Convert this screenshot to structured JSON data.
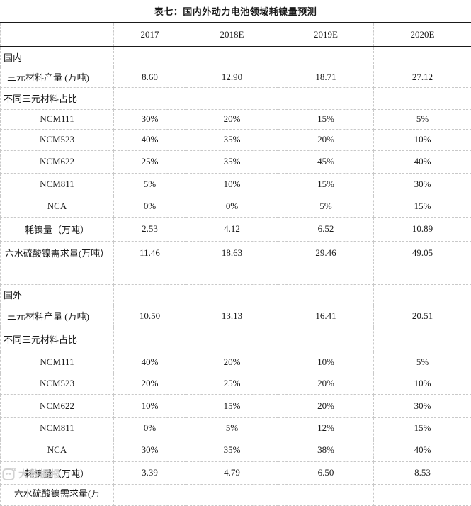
{
  "title": "表七：国内外动力电池领域耗镍量预测",
  "chart_data": {
    "type": "table",
    "title": "表七：国内外动力电池领域耗镍量预测",
    "columns": [
      "",
      "2017",
      "2018E",
      "2019E",
      "2020E"
    ],
    "rows": [
      {
        "label": "国内",
        "type": "section",
        "values": [
          "",
          "",
          "",
          ""
        ]
      },
      {
        "label": "三元材料产量 (万吨)",
        "type": "left",
        "values": [
          "8.60",
          "12.90",
          "18.71",
          "27.12"
        ]
      },
      {
        "label": "不同三元材料占比",
        "type": "section",
        "values": [
          "",
          "",
          "",
          ""
        ]
      },
      {
        "label": "NCM111",
        "type": "center",
        "values": [
          "30%",
          "20%",
          "15%",
          "5%"
        ]
      },
      {
        "label": "NCM523",
        "type": "center",
        "values": [
          "40%",
          "35%",
          "20%",
          "10%"
        ]
      },
      {
        "label": "NCM622",
        "type": "center",
        "values": [
          "25%",
          "35%",
          "45%",
          "40%"
        ]
      },
      {
        "label": "NCM811",
        "type": "center",
        "values": [
          "5%",
          "10%",
          "15%",
          "30%"
        ]
      },
      {
        "label": "NCA",
        "type": "center",
        "values": [
          "0%",
          "0%",
          "5%",
          "15%"
        ]
      },
      {
        "label": "耗镍量（万吨）",
        "type": "center",
        "values": [
          "2.53",
          "4.12",
          "6.52",
          "10.89"
        ]
      },
      {
        "label": "六水硫酸镍需求量(万吨）",
        "type": "tall",
        "values": [
          "11.46",
          "18.63",
          "29.46",
          "49.05"
        ]
      },
      {
        "label": "国外",
        "type": "section",
        "values": [
          "",
          "",
          "",
          ""
        ]
      },
      {
        "label": "三元材料产量 (万吨)",
        "type": "left",
        "values": [
          "10.50",
          "13.13",
          "16.41",
          "20.51"
        ]
      },
      {
        "label": "不同三元材料占比",
        "type": "section",
        "values": [
          "",
          "",
          "",
          ""
        ]
      },
      {
        "label": "NCM111",
        "type": "center",
        "values": [
          "40%",
          "20%",
          "10%",
          "5%"
        ]
      },
      {
        "label": "NCM523",
        "type": "center",
        "values": [
          "20%",
          "25%",
          "20%",
          "10%"
        ]
      },
      {
        "label": "NCM622",
        "type": "center",
        "values": [
          "10%",
          "15%",
          "20%",
          "30%"
        ]
      },
      {
        "label": "NCM811",
        "type": "center",
        "values": [
          "0%",
          "5%",
          "12%",
          "15%"
        ]
      },
      {
        "label": "NCA",
        "type": "center",
        "values": [
          "30%",
          "35%",
          "38%",
          "40%"
        ]
      },
      {
        "label": "耗镍量（万吨）",
        "type": "center",
        "values": [
          "3.39",
          "4.79",
          "6.50",
          "8.53"
        ]
      },
      {
        "label": "六水硫酸镍需求量(万",
        "type": "clipped",
        "values": [
          "",
          "",
          "",
          ""
        ]
      }
    ]
  },
  "watermark": {
    "text": "大数据报",
    "icon": "rounded-square-logo-icon"
  },
  "colors": {
    "text": "#1a1a1a",
    "heavy_rule": "#1a1a1a",
    "gridline": "#c9c9c9",
    "watermark": "#d2d2d2",
    "background": "#ffffff"
  }
}
